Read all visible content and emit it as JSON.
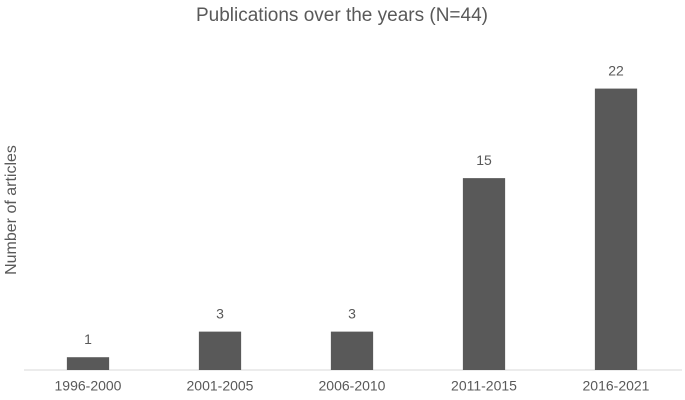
{
  "chart_data": {
    "type": "bar",
    "title": "Publications over the years (N=44)",
    "y_label": "Number of articles",
    "categories": [
      "1996-2000",
      "2001-2005",
      "2006-2010",
      "2011-2015",
      "2016-2021"
    ],
    "values": [
      1,
      3,
      3,
      15,
      22
    ],
    "color": "#595959",
    "ylim": [
      0,
      24
    ],
    "grid": false
  }
}
